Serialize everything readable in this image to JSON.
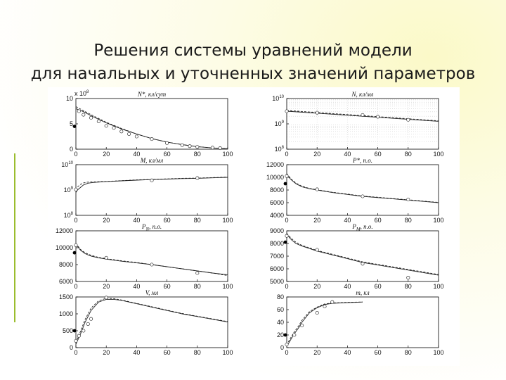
{
  "slide": {
    "title_line1": "Решения системы уравнений модели",
    "title_line2": "для начальных и уточненных значений параметров"
  },
  "colors": {
    "accent": "#9bbd2e",
    "line": "#222222",
    "grid": "#cfcfcf"
  },
  "chart_data": [
    {
      "type": "line",
      "id": "N_star",
      "title": "N*, кл/сут",
      "x_ticks": [
        "0",
        "20",
        "40",
        "60",
        "80",
        "100"
      ],
      "xlim": [
        0,
        100
      ],
      "y_multiplier": "x 10^8",
      "ylim": [
        0,
        10
      ],
      "y_ticks": [
        "0",
        "5",
        "10"
      ],
      "grid": false,
      "series": [
        {
          "style": "solid",
          "x": [
            0,
            5,
            10,
            20,
            30,
            40,
            50,
            60,
            70,
            80,
            90,
            100
          ],
          "y": [
            8,
            7.4,
            6.6,
            5.2,
            4.0,
            3.0,
            2.1,
            1.4,
            0.9,
            0.5,
            0.25,
            0.1
          ]
        },
        {
          "style": "dashed",
          "x": [
            0,
            5,
            10,
            20,
            30,
            40,
            50,
            60,
            70,
            80,
            90,
            100
          ],
          "y": [
            8.4,
            7.6,
            6.8,
            5.3,
            4.1,
            3.0,
            2.1,
            1.4,
            0.9,
            0.5,
            0.25,
            0.1
          ]
        }
      ],
      "points": {
        "x": [
          2,
          5,
          10,
          15,
          20,
          25,
          30,
          35,
          40,
          50,
          60,
          70,
          75,
          80,
          90,
          95
        ],
        "y": [
          7.5,
          6.8,
          6.2,
          5.5,
          4.6,
          4.2,
          3.5,
          3.0,
          2.5,
          2.0,
          1.2,
          0.8,
          0.6,
          0.45,
          0.3,
          0.2
        ]
      },
      "initial": {
        "x": 0,
        "y": 4.5
      }
    },
    {
      "type": "line",
      "id": "N",
      "title": "N, кл/мл",
      "x_ticks": [
        "0",
        "20",
        "40",
        "60",
        "80",
        "100"
      ],
      "xlim": [
        0,
        100
      ],
      "y_scale": "log",
      "ylim": [
        8,
        10
      ],
      "y_ticks": [
        "10^8",
        "10^9",
        "10^10"
      ],
      "grid": true,
      "series": [
        {
          "style": "solid",
          "x": [
            0,
            100
          ],
          "y": [
            9.5,
            9.1
          ]
        },
        {
          "style": "dashed",
          "x": [
            0,
            100
          ],
          "y": [
            9.53,
            9.12
          ]
        }
      ],
      "points": {
        "x": [
          0,
          20,
          50,
          60,
          80
        ],
        "y": [
          9.5,
          9.44,
          9.35,
          9.28,
          9.16
        ]
      },
      "initial": null
    },
    {
      "type": "line",
      "id": "M",
      "title": "M, кл/мл",
      "x_ticks": [
        "0",
        "20",
        "40",
        "60",
        "80",
        "100"
      ],
      "xlim": [
        0,
        100
      ],
      "y_scale": "log",
      "ylim": [
        8,
        10
      ],
      "y_ticks": [
        "10^8",
        "10^9",
        "10^10"
      ],
      "grid": false,
      "series": [
        {
          "style": "solid",
          "x": [
            0,
            1,
            3,
            5,
            8,
            12,
            20,
            30,
            40,
            50,
            60,
            70,
            80,
            90,
            100
          ],
          "y": [
            8.9,
            9.0,
            9.1,
            9.2,
            9.27,
            9.3,
            9.33,
            9.36,
            9.39,
            9.41,
            9.43,
            9.45,
            9.46,
            9.48,
            9.5
          ]
        },
        {
          "style": "dashed",
          "x": [
            0,
            1,
            3,
            5,
            8,
            12,
            20,
            30,
            40,
            50,
            60,
            70,
            80,
            90,
            100
          ],
          "y": [
            9.0,
            9.12,
            9.22,
            9.28,
            9.31,
            9.32,
            9.34,
            9.37,
            9.4,
            9.42,
            9.44,
            9.46,
            9.47,
            9.49,
            9.51
          ]
        }
      ],
      "points": {
        "x": [
          0,
          50,
          80
        ],
        "y": [
          9.02,
          9.38,
          9.47
        ]
      },
      "initial": null
    },
    {
      "type": "line",
      "id": "P_star",
      "title": "P*, п.о.",
      "x_ticks": [
        "0",
        "20",
        "40",
        "60",
        "80",
        "100"
      ],
      "xlim": [
        0,
        100
      ],
      "ylim": [
        4000,
        12000
      ],
      "y_ticks": [
        "4000",
        "6000",
        "8000",
        "10000",
        "12000"
      ],
      "grid": false,
      "series": [
        {
          "style": "solid",
          "x": [
            0,
            3,
            6,
            10,
            15,
            20,
            30,
            40,
            50,
            60,
            70,
            80,
            90,
            100
          ],
          "y": [
            10400,
            9600,
            9000,
            8500,
            8200,
            8000,
            7600,
            7300,
            7000,
            6800,
            6600,
            6400,
            6200,
            6000
          ]
        },
        {
          "style": "dashed",
          "x": [
            0,
            3,
            6,
            10,
            15,
            20,
            30,
            40,
            50,
            60,
            70,
            80,
            90,
            100
          ],
          "y": [
            10600,
            9700,
            9100,
            8600,
            8250,
            8050,
            7650,
            7350,
            7050,
            6850,
            6650,
            6450,
            6250,
            6050
          ]
        }
      ],
      "points": {
        "x": [
          0,
          20,
          50,
          80
        ],
        "y": [
          10200,
          8100,
          7000,
          6500
        ]
      },
      "initial": {
        "x": 0,
        "y": 9000
      }
    },
    {
      "type": "line",
      "id": "P_N",
      "title": "P_N, п.о.",
      "x_ticks": [
        "0",
        "20",
        "40",
        "60",
        "80",
        "100"
      ],
      "xlim": [
        0,
        100
      ],
      "ylim": [
        6000,
        12000
      ],
      "y_ticks": [
        "6000",
        "8000",
        "10000",
        "12000"
      ],
      "grid": false,
      "series": [
        {
          "style": "solid",
          "x": [
            0,
            3,
            6,
            10,
            15,
            20,
            30,
            40,
            50,
            60,
            70,
            80,
            90,
            100
          ],
          "y": [
            10400,
            9700,
            9300,
            9000,
            8800,
            8650,
            8400,
            8200,
            8000,
            7750,
            7500,
            7250,
            7000,
            6800
          ]
        },
        {
          "style": "dashed",
          "x": [
            0,
            3,
            6,
            10,
            15,
            20,
            30,
            40,
            50,
            60,
            70,
            80,
            90,
            100
          ],
          "y": [
            10500,
            9800,
            9400,
            9100,
            8850,
            8700,
            8450,
            8250,
            8000,
            7750,
            7500,
            7250,
            7000,
            6700
          ]
        }
      ],
      "points": {
        "x": [
          0,
          20,
          50,
          80
        ],
        "y": [
          10300,
          8800,
          8000,
          7000
        ]
      },
      "initial": {
        "x": 0,
        "y": 9400
      }
    },
    {
      "type": "line",
      "id": "P_M",
      "title": "P_M, п.о.",
      "x_ticks": [
        "0",
        "20",
        "40",
        "60",
        "80",
        "100"
      ],
      "xlim": [
        0,
        100
      ],
      "ylim": [
        5000,
        9000
      ],
      "y_ticks": [
        "5000",
        "6000",
        "7000",
        "8000",
        "9000"
      ],
      "grid": false,
      "series": [
        {
          "style": "solid",
          "x": [
            0,
            3,
            6,
            10,
            15,
            20,
            30,
            40,
            50,
            60,
            70,
            80,
            90,
            100
          ],
          "y": [
            8700,
            8300,
            8000,
            7800,
            7600,
            7400,
            7100,
            6800,
            6500,
            6300,
            6100,
            5900,
            5700,
            5500
          ]
        },
        {
          "style": "dashed",
          "x": [
            0,
            3,
            6,
            10,
            15,
            20,
            30,
            40,
            50,
            60,
            70,
            80,
            90,
            100
          ],
          "y": [
            8800,
            8400,
            8100,
            7850,
            7650,
            7450,
            7150,
            6850,
            6550,
            6350,
            6150,
            5950,
            5750,
            5550
          ]
        }
      ],
      "points": {
        "x": [
          0,
          20,
          50,
          80
        ],
        "y": [
          8600,
          7500,
          6400,
          5300
        ]
      },
      "initial": {
        "x": 0,
        "y": 8100
      }
    },
    {
      "type": "line",
      "id": "V",
      "title": "V, мл",
      "x_ticks": [
        "0",
        "20",
        "40",
        "60",
        "80",
        "100"
      ],
      "xlim": [
        0,
        100
      ],
      "ylim": [
        0,
        1500
      ],
      "y_ticks": [
        "0",
        "500",
        "1000",
        "1500"
      ],
      "grid": false,
      "series": [
        {
          "style": "solid",
          "x": [
            0,
            3,
            6,
            10,
            15,
            20,
            25,
            30,
            40,
            50,
            60,
            70,
            80,
            90,
            100
          ],
          "y": [
            100,
            400,
            750,
            1100,
            1350,
            1430,
            1430,
            1400,
            1300,
            1200,
            1100,
            1000,
            920,
            840,
            760
          ]
        },
        {
          "style": "dashed",
          "x": [
            0,
            3,
            6,
            10,
            15,
            20,
            25,
            30,
            40,
            50,
            60,
            70,
            80,
            90,
            100
          ],
          "y": [
            150,
            480,
            830,
            1170,
            1390,
            1460,
            1450,
            1410,
            1310,
            1210,
            1110,
            1010,
            930,
            850,
            770
          ]
        }
      ],
      "points": {
        "x": [
          0,
          2,
          5,
          8,
          10,
          20
        ],
        "y": [
          200,
          350,
          500,
          700,
          850,
          1480
        ]
      },
      "initial": {
        "x": 0,
        "y": 500
      }
    },
    {
      "type": "line",
      "id": "m",
      "title": "m, кл",
      "x_ticks": [
        "0",
        "20",
        "40",
        "60",
        "80",
        "100"
      ],
      "xlim": [
        0,
        100
      ],
      "ylim": [
        0,
        80
      ],
      "y_ticks": [
        "0",
        "20",
        "40",
        "60",
        "80"
      ],
      "grid": false,
      "series": [
        {
          "style": "solid",
          "x": [
            0,
            2,
            5,
            8,
            10,
            15,
            20,
            25,
            30,
            40,
            50
          ],
          "y": [
            2,
            10,
            22,
            32,
            40,
            55,
            63,
            68,
            70,
            71,
            72
          ]
        },
        {
          "style": "dashed",
          "x": [
            0,
            2,
            5,
            8,
            10,
            15,
            20,
            25,
            30,
            40,
            50
          ],
          "y": [
            4,
            13,
            25,
            35,
            43,
            57,
            64,
            69,
            70.5,
            71.5,
            72
          ]
        }
      ],
      "points": {
        "x": [
          0,
          5,
          10,
          20,
          25,
          30
        ],
        "y": [
          5,
          20,
          35,
          55,
          65,
          72
        ]
      },
      "initial": {
        "x": 0,
        "y": 20
      }
    }
  ]
}
